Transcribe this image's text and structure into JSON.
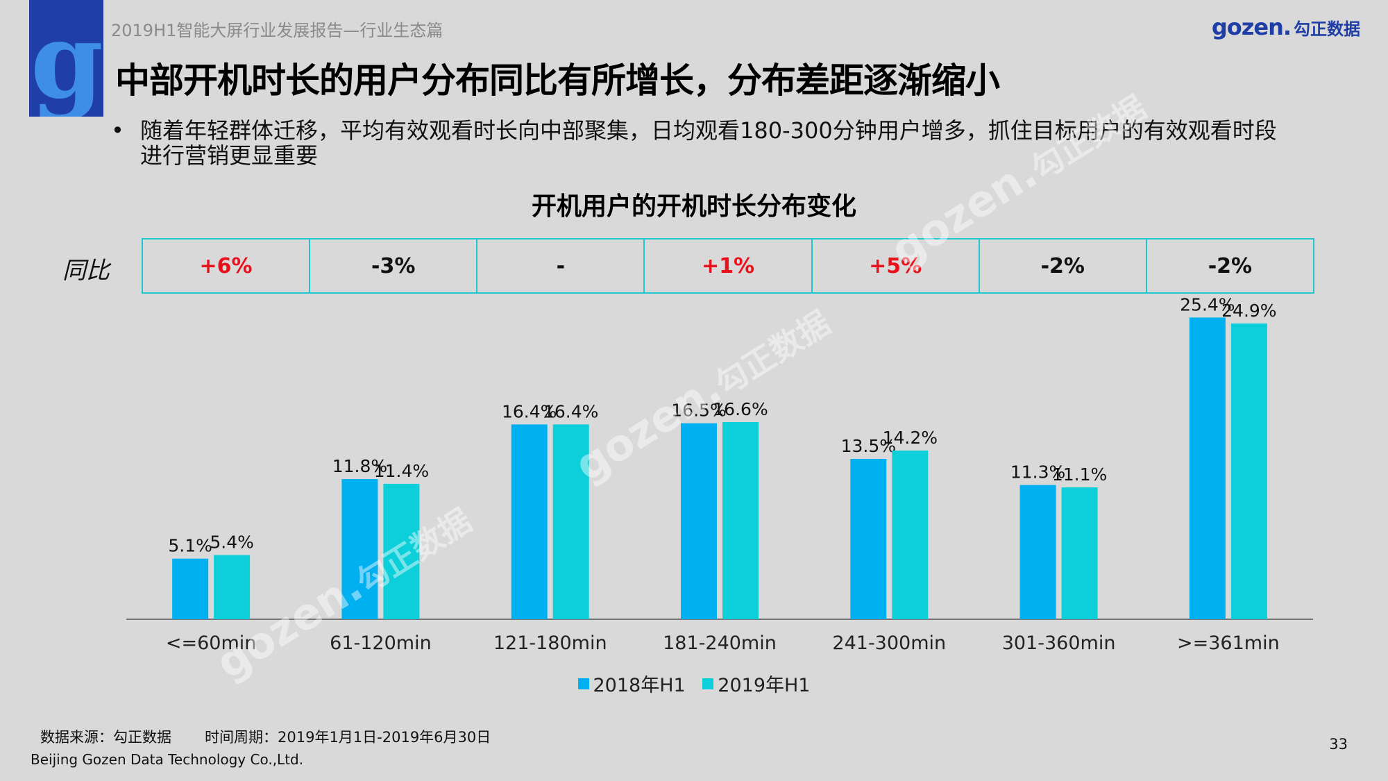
{
  "header": {
    "report_title": "2019H1智能大屏行业发展报告—行业生态篇",
    "brand_latin": "gozen.",
    "brand_cn": "勾正数据",
    "logo_letter": "g"
  },
  "title": "中部开机时长的用户分布同比有所增长，分布差距逐渐缩小",
  "bullet": {
    "symbol": "•",
    "text": "随着年轻群体迁移，平均有效观看时长向中部聚集，日均观看180-300分钟用户增多，抓住目标用户的有效观看时段进行营销更显重要"
  },
  "yoy": {
    "label": "同比",
    "values": [
      "+6%",
      "-3%",
      "-",
      "+1%",
      "+5%",
      "-2%",
      "-2%"
    ]
  },
  "colors": {
    "series_2018": "#00b0f0",
    "series_2019": "#0ccfd9",
    "positive": "#e8121c",
    "table_border": "#20c6d2"
  },
  "chart_data": {
    "type": "bar",
    "title": "开机用户的开机时长分布变化",
    "categories": [
      "<=60min",
      "61-120min",
      "121-180min",
      "181-240min",
      "241-300min",
      "301-360min",
      ">=361min"
    ],
    "series": [
      {
        "name": "2018年H1",
        "values": [
          5.1,
          11.8,
          16.4,
          16.5,
          13.5,
          11.3,
          25.4
        ],
        "labels": [
          "5.1%",
          "11.8%",
          "16.4%",
          "16.5%",
          "13.5%",
          "11.3%",
          "25.4%"
        ]
      },
      {
        "name": "2019年H1",
        "values": [
          5.4,
          11.4,
          16.4,
          16.6,
          14.2,
          11.1,
          24.9
        ],
        "labels": [
          "5.4%",
          "11.4%",
          "16.4%",
          "16.6%",
          "14.2%",
          "11.1%",
          "24.9%"
        ]
      }
    ],
    "unit": "%",
    "ylim": [
      0,
      27
    ],
    "grid": false,
    "legend": "bottom-center"
  },
  "watermark": {
    "latin": "gozen.",
    "cn": "勾正数据"
  },
  "footer": {
    "source": "数据来源：勾正数据",
    "period": "时间周期：2019年1月1日-2019年6月30日",
    "company": "Beijing Gozen Data Technology Co.,Ltd.",
    "page_number": "33"
  }
}
